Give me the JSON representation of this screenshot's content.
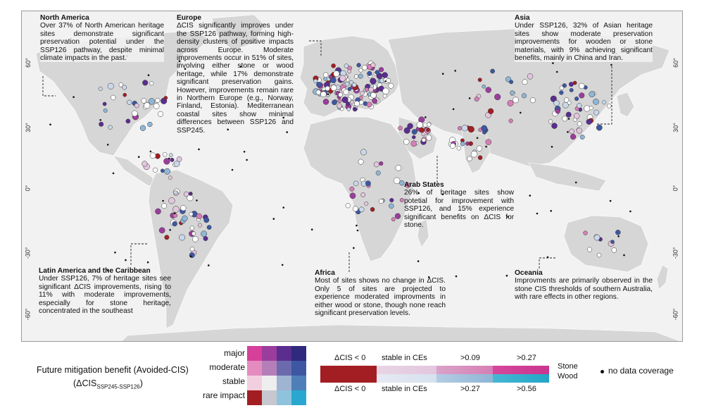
{
  "map": {
    "lat_ticks_left": [
      "60°",
      "30°",
      "0°",
      "-30°",
      "-60°"
    ],
    "lat_ticks_right": [
      "60°",
      "30°",
      "0°",
      "-30°",
      "-60°"
    ]
  },
  "annotations": {
    "north_america": {
      "title": "North America",
      "body": "Over 37% of North American heritage sites demonstrate significant preservation potential under the SSP126 pathway, despite minimal climate impacts in the past."
    },
    "europe": {
      "title": "Europe",
      "body": "ΔCIS significantly improves under the SSP126 pathway, forming high-density clusters of positive impacts across Europe. Moderate improvements occur in 51% of sites, involving either stone or wood heritage, while 17% demonstrate significant preservation gains. However, improvements remain rare in Northern Europe (e.g., Norway, Finland, Estonia). Mediterranean coastal sites show minimal differences between SSP126 and SSP245."
    },
    "asia": {
      "title": "Asia",
      "body": "Under SSP126, 32% of Asian heritage sites show moderate preservation improvements for wooden or stone materials, with 9% achieving significant benefits, mainly in China and Iran."
    },
    "arab_states": {
      "title": "Arab States",
      "body": "26% of heritage sites show potetial for improvement with SSP126, and 15% experience significant benefits on ΔCIS for stone."
    },
    "latin_america": {
      "title": "Latin America and the Caribbean",
      "body": "Under SSP126, 7% of heritage sites see significant ΔCIS improvements, rising to 11% with moderate improvements, especially for stone heritage, concentrated in the southeast"
    },
    "africa": {
      "title": "Africa",
      "body": "Most of sites shows no change in ΔCIS. Only 5 of sites are projected to experience moderated improvments in either wood or stone, though none reach significant preservation levels."
    },
    "oceania": {
      "title": "Oceania",
      "body": "Improvments are primarily observed in the stone CIS thresholds of southern Australia, with rare effects in other regions."
    }
  },
  "legend": {
    "title": "Future mitigation benefit (Avoided-CIS)",
    "formula_main": "(ΔCIS",
    "formula_sub": "SSP245-SSP126",
    "formula_end": ")",
    "levels": [
      "major",
      "moderate",
      "stable",
      "rare impact"
    ],
    "grid_colors": [
      [
        "#d63f9a",
        "#9b3d9c",
        "#5b2d8f",
        "#2f2a7d"
      ],
      [
        "#e48cbf",
        "#b47fb8",
        "#6c6aae",
        "#3d57a3"
      ],
      [
        "#f2cfdf",
        "#eeeeee",
        "#9fb3d3",
        "#4f7fb8"
      ],
      [
        "#a31e22",
        "#c7c7cf",
        "#8fc3dd",
        "#2aa7d0"
      ]
    ],
    "stone_labels": [
      "ΔCIS < 0",
      "stable in CEs",
      ">0.09",
      ">0.27"
    ],
    "wood_labels": [
      "ΔCIS < 0",
      "stable in CEs",
      ">0.27",
      ">0.56"
    ],
    "stone_name": "Stone",
    "wood_name": "Wood",
    "no_data": "no data coverage",
    "colors": {
      "neg": "#a31e22",
      "stable": "#e8d5e5",
      "stone_mid": "#d77fb5",
      "stone_high": "#d6479c",
      "wood_mid": "#8fb6d6",
      "wood_high": "#23a6c7",
      "land": "#d9d9d9",
      "ocean": "#f2f2f2",
      "border": "#ffffff"
    }
  }
}
